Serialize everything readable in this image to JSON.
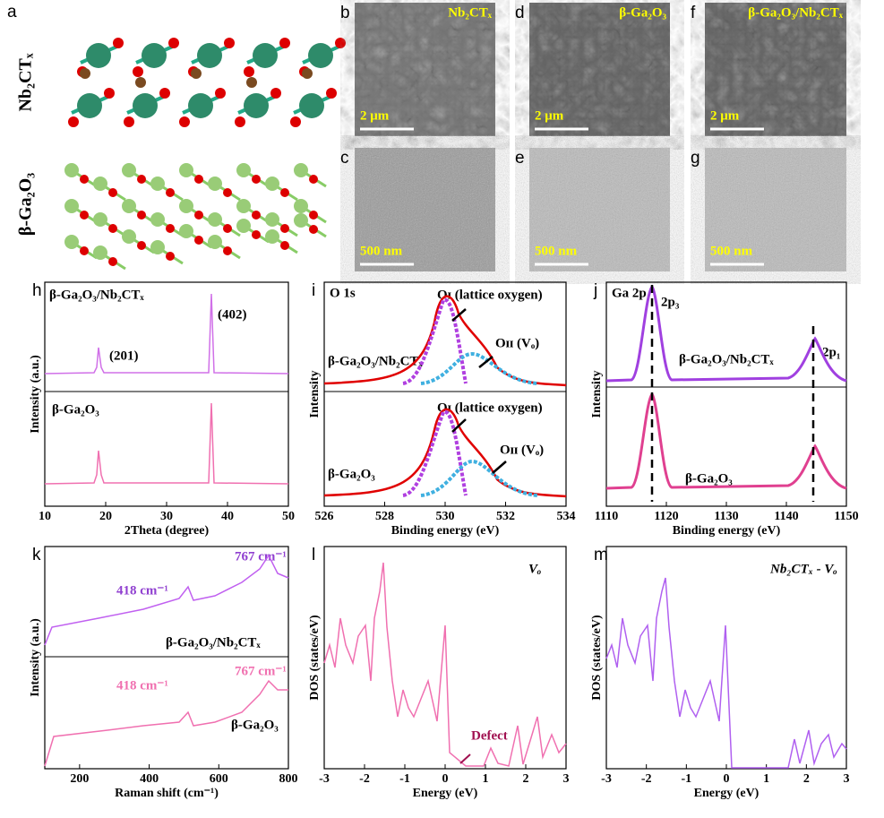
{
  "panels": {
    "a": {
      "label": "a",
      "top": "Nb₂CTₓ",
      "bottom": "β-Ga₂O₃"
    },
    "b": {
      "label": "b",
      "title": "Nb₂CTₓ",
      "scale": "2 μm"
    },
    "c": {
      "label": "c",
      "scale": "500 nm"
    },
    "d": {
      "label": "d",
      "title": "β-Ga₂O₃",
      "scale": "2 μm"
    },
    "e": {
      "label": "e",
      "scale": "500 nm"
    },
    "f": {
      "label": "f",
      "title": "β-Ga₂O₃/Nb₂CTₓ",
      "scale": "2 μm"
    },
    "g": {
      "label": "g",
      "scale": "500 nm"
    }
  },
  "plots": [
    {
      "label": "h",
      "xlabel": "2Theta (degree)",
      "ylabel": "Intensity (a.u.)",
      "xlim": [
        10,
        50
      ],
      "xticks": [
        10,
        20,
        30,
        40,
        50
      ],
      "texts": [
        "β-Ga₂O₃/Nb₂CTₓ",
        "(402)",
        "(201)",
        "β-Ga₂O₃"
      ]
    },
    {
      "label": "i",
      "xlabel": "Binding energy (eV)",
      "ylabel": "Intensity",
      "xlim": [
        526,
        534
      ],
      "xticks": [
        526,
        528,
        530,
        532,
        534
      ],
      "texts": [
        "O 1s",
        "Oɪ (lattice oxygen)",
        "β-Ga₂O₃/Nb₂CTₓ",
        "Oɪɪ (Vₒ)",
        "Oɪ (lattice oxygen)",
        "β-Ga₂O₃",
        "Oɪɪ (Vₒ)"
      ]
    },
    {
      "label": "j",
      "xlabel": "Binding energy (eV)",
      "ylabel": "Intensity",
      "xlim": [
        1110,
        1150
      ],
      "xticks": [
        1110,
        1120,
        1130,
        1140,
        1150
      ],
      "texts": [
        "Ga 2p",
        "2p₃",
        "β-Ga₂O₃/Nb₂CTₓ",
        "2p₁",
        "β-Ga₂O₃"
      ]
    },
    {
      "label": "k",
      "xlabel": "Raman shift (cm⁻¹)",
      "ylabel": "Intensity (a.u.)",
      "xlim": [
        100,
        800
      ],
      "xticks": [
        200,
        400,
        600,
        800
      ],
      "texts": [
        "418 cm⁻¹",
        "767 cm⁻¹",
        "β-Ga₂O₃/Nb₂CTₓ",
        "418 cm⁻¹",
        "767 cm⁻¹",
        "β-Ga₂O₃"
      ]
    },
    {
      "label": "l",
      "xlabel": "Energy (eV)",
      "ylabel": "DOS (states/eV)",
      "xlim": [
        -3,
        3
      ],
      "xticks": [
        -3,
        -2,
        -1,
        0,
        1,
        2,
        3
      ],
      "texts": [
        "Vₒ",
        "Defect"
      ]
    },
    {
      "label": "m",
      "xlabel": "Energy (eV)",
      "ylabel": "DOS (states/eV)",
      "xlim": [
        -3,
        3
      ],
      "xticks": [
        -3,
        -2,
        -1,
        0,
        1,
        2,
        3
      ],
      "texts": [
        "Nb₂CTₓ - Vₒ"
      ]
    }
  ]
}
